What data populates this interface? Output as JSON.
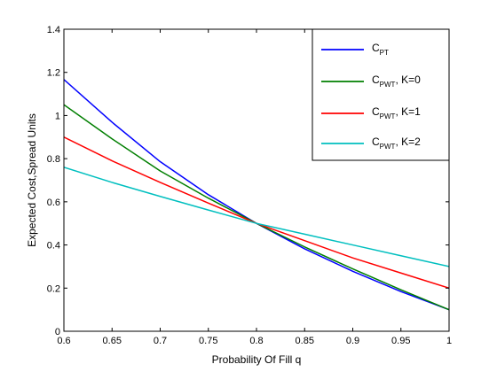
{
  "chart_data": {
    "type": "line",
    "title": "",
    "xlabel": "Probability Of Fill q",
    "ylabel": "Expected Cost,Spread Units",
    "xlim": [
      0.6,
      1.0
    ],
    "ylim": [
      0,
      1.4
    ],
    "xticks": [
      0.6,
      0.65,
      0.7,
      0.75,
      0.8,
      0.85,
      0.9,
      0.95,
      1.0
    ],
    "xtick_labels": [
      "0.6",
      "0.65",
      "0.7",
      "0.75",
      "0.8",
      "0.85",
      "0.9",
      "0.95",
      "1"
    ],
    "yticks": [
      0,
      0.2,
      0.4,
      0.6,
      0.8,
      1.0,
      1.2,
      1.4
    ],
    "ytick_labels": [
      "0",
      "0.2",
      "0.4",
      "0.6",
      "0.8",
      "1",
      "1.2",
      "1.4"
    ],
    "grid": false,
    "legend_position": "top-right",
    "series": [
      {
        "name": "C_PT",
        "label_main": "C",
        "label_sub": "PT",
        "label_suffix": "",
        "color": "#0000ff",
        "x": [
          0.6,
          0.65,
          0.7,
          0.75,
          0.8,
          0.85,
          0.9,
          0.95,
          1.0
        ],
        "y": [
          1.167,
          0.969,
          0.786,
          0.633,
          0.5,
          0.382,
          0.278,
          0.184,
          0.1
        ]
      },
      {
        "name": "C_PWT, K=0",
        "label_main": "C",
        "label_sub": "PWT",
        "label_suffix": ", K=0",
        "color": "#007f00",
        "x": [
          0.6,
          0.65,
          0.7,
          0.75,
          0.8,
          0.85,
          0.9,
          0.95,
          1.0
        ],
        "y": [
          1.05,
          0.892,
          0.743,
          0.617,
          0.5,
          0.391,
          0.289,
          0.192,
          0.1
        ]
      },
      {
        "name": "C_PWT, K=1",
        "label_main": "C",
        "label_sub": "PWT",
        "label_suffix": ", K=1",
        "color": "#ff0000",
        "x": [
          0.6,
          0.65,
          0.7,
          0.75,
          0.8,
          0.85,
          0.9,
          0.95,
          1.0
        ],
        "y": [
          0.9,
          0.79,
          0.69,
          0.594,
          0.5,
          0.42,
          0.34,
          0.27,
          0.2
        ]
      },
      {
        "name": "C_PWT, K=2",
        "label_main": "C",
        "label_sub": "PWT",
        "label_suffix": ", K=2",
        "color": "#00bfbf",
        "x": [
          0.6,
          0.65,
          0.7,
          0.75,
          0.8,
          0.85,
          0.9,
          0.95,
          1.0
        ],
        "y": [
          0.76,
          0.69,
          0.625,
          0.562,
          0.5,
          0.45,
          0.4,
          0.35,
          0.3
        ]
      }
    ]
  }
}
